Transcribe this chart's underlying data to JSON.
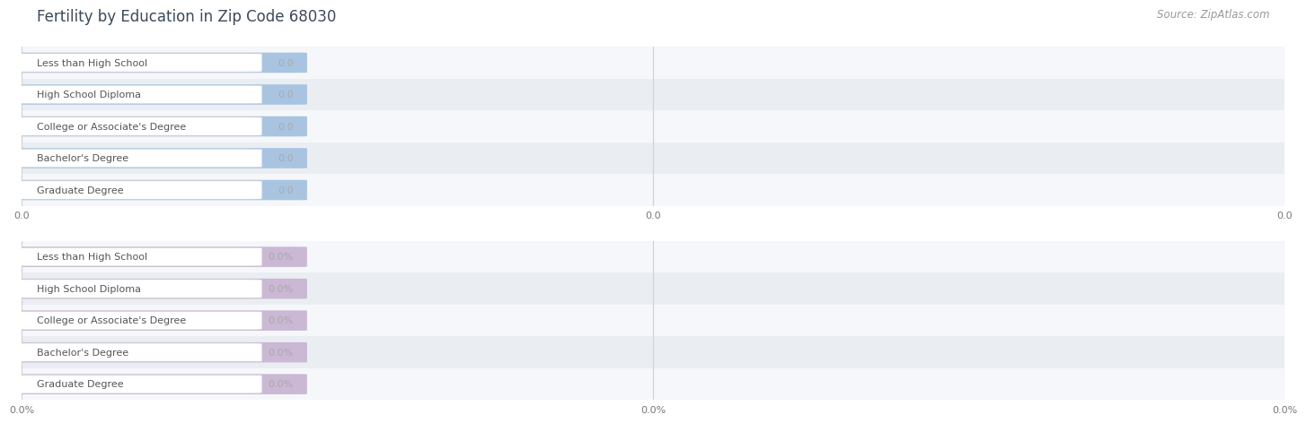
{
  "title": "Fertility by Education in Zip Code 68030",
  "source": "Source: ZipAtlas.com",
  "categories": [
    "Less than High School",
    "High School Diploma",
    "College or Associate's Degree",
    "Bachelor's Degree",
    "Graduate Degree"
  ],
  "top_values": [
    0.0,
    0.0,
    0.0,
    0.0,
    0.0
  ],
  "bottom_values": [
    0.0,
    0.0,
    0.0,
    0.0,
    0.0
  ],
  "top_bar_color": "#a8c4e0",
  "bottom_bar_color": "#cab8d4",
  "value_text_color": "#aaaaaa",
  "label_text_color": "#555555",
  "top_tick_labels": [
    "0.0",
    "0.0",
    "0.0"
  ],
  "bottom_tick_labels": [
    "0.0%",
    "0.0%",
    "0.0%"
  ],
  "background_color": "#ffffff",
  "row_even_color": "#f5f7fa",
  "row_odd_color": "#eaeef3",
  "title_color": "#3a4a5a",
  "source_color": "#999999",
  "section_bg": "#f0f0f0"
}
